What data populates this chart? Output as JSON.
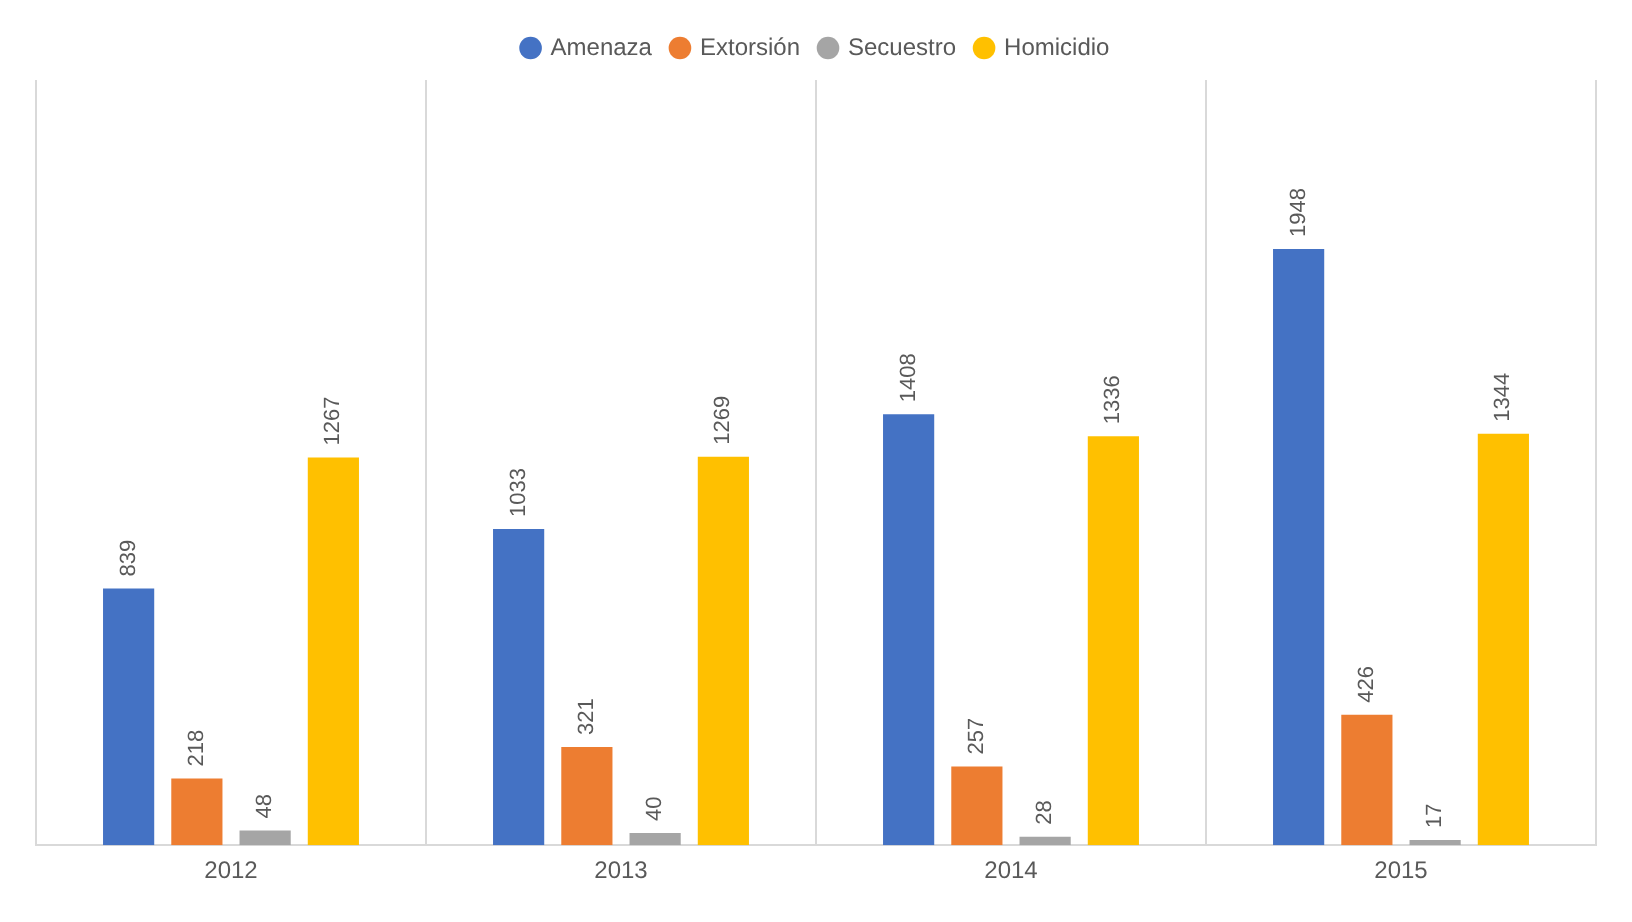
{
  "chart_data": {
    "type": "bar",
    "categories": [
      "2012",
      "2013",
      "2014",
      "2015"
    ],
    "series": [
      {
        "name": "Amenaza",
        "color": "#4472c4",
        "values": [
          839,
          1033,
          1408,
          1948
        ]
      },
      {
        "name": "Extorsión",
        "color": "#ed7d31",
        "values": [
          218,
          321,
          257,
          426
        ]
      },
      {
        "name": "Secuestro",
        "color": "#a5a5a5",
        "values": [
          48,
          40,
          28,
          17
        ]
      },
      {
        "name": "Homicidio",
        "color": "#ffc000",
        "values": [
          1267,
          1269,
          1336,
          1344
        ]
      }
    ],
    "data_labels": true,
    "legend": "top",
    "grid": "x"
  }
}
